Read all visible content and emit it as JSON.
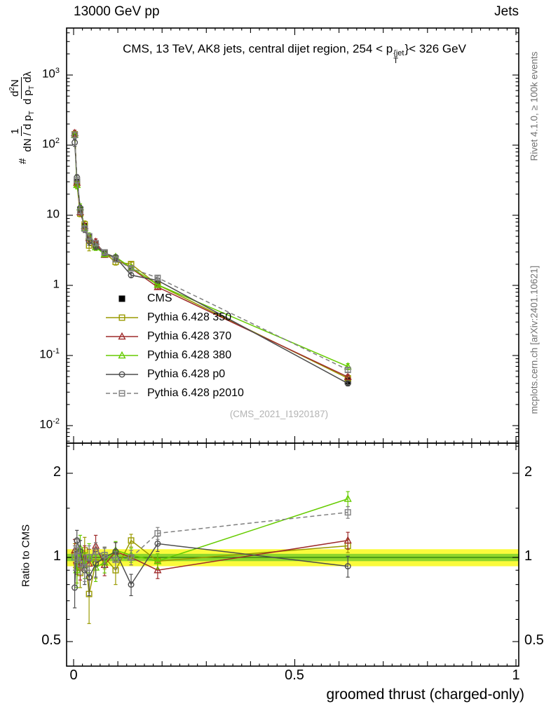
{
  "header": {
    "left": "13000 GeV pp",
    "right": "Jets"
  },
  "plot": {
    "title": {
      "part1": "CMS, 13 TeV, AK8 jets, central dijet region, 254 < p",
      "sup": "{jet",
      "sub": "T",
      "part2": "}< 326 GeV"
    },
    "ylabel": {
      "hash": "#",
      "f1num": "1",
      "f1den": "dN / d p",
      "f1den_sub": "T",
      "f2num_a": "d",
      "f2num_sup": "2",
      "f2num_b": "N",
      "f2den_a": "d p",
      "f2den_sub": "T",
      "f2den_b": " dλ"
    },
    "ratio_ylabel": "Ratio to CMS",
    "xlabel": "groomed thrust (charged-only)",
    "watermark": "(CMS_2021_I1920187)",
    "right_top": "Rivet 4.1.0, ≥ 100k events",
    "right_bottom": "mcplots.cern.ch [arXiv:2401.10621]",
    "y_ticks": [
      {
        "base": "10",
        "exp": "3"
      },
      {
        "base": "10",
        "exp": "2"
      },
      {
        "base": "10",
        "exp": ""
      },
      {
        "base": "1",
        "exp": ""
      },
      {
        "base": "10",
        "exp": "-1"
      },
      {
        "base": "10",
        "exp": "-2"
      }
    ],
    "ratio_ticks": [
      "2",
      "1",
      "0.5"
    ],
    "x_ticks": [
      "0",
      "0.5",
      "1"
    ]
  },
  "legend": {
    "items": [
      {
        "label": "CMS"
      },
      {
        "label": "Pythia 6.428 350"
      },
      {
        "label": "Pythia 6.428 370"
      },
      {
        "label": "Pythia 6.428 380"
      },
      {
        "label": "Pythia 6.428 p0"
      },
      {
        "label": "Pythia 6.428 p2010"
      }
    ]
  },
  "chart_data": {
    "type": "line",
    "title": "CMS, 13 TeV, AK8 jets, central dijet region, 254 < pT(jet) < 326 GeV",
    "xlabel": "groomed thrust (charged-only)",
    "ylabel": "# 1/(dN/dpT) d2N/(dpT dlambda)",
    "ratio_label": "Ratio to CMS",
    "x_range": [
      0,
      1
    ],
    "y_scale": "log",
    "y_range": [
      0.0056,
      4700
    ],
    "ratio_y_range": [
      0.41,
      2.55
    ],
    "legend_position": "inside-left",
    "x": [
      0.0025,
      0.0075,
      0.015,
      0.025,
      0.035,
      0.05,
      0.07,
      0.095,
      0.13,
      0.19,
      0.62
    ],
    "reference": {
      "name": "CMS",
      "color": "#000000",
      "marker": "square",
      "filled": true,
      "y": [
        140,
        30,
        12,
        7,
        5,
        3.8,
        2.9,
        2.4,
        1.75,
        1.05,
        0.043
      ],
      "yerr_rel": [
        0.08,
        0.06,
        0.05,
        0.05,
        0.06,
        0.05,
        0.05,
        0.05,
        0.05,
        0.05,
        0.12
      ]
    },
    "series": [
      {
        "name": "Pythia 6.428 350",
        "color": "#9a9a00",
        "marker": "square",
        "dash": null,
        "ratio": [
          1.02,
          0.93,
          0.88,
          1.06,
          0.74,
          0.96,
          1.0,
          0.9,
          1.15,
          0.97,
          1.1
        ],
        "ratio_err": [
          0.1,
          0.12,
          0.1,
          0.12,
          0.16,
          0.12,
          0.09,
          0.1,
          0.06,
          0.06,
          0.06
        ]
      },
      {
        "name": "Pythia 6.428 370",
        "color": "#9e2b2b",
        "marker": "triangle",
        "dash": null,
        "ratio": [
          1.06,
          0.97,
          0.92,
          1.0,
          0.95,
          1.1,
          0.94,
          1.05,
          1.0,
          0.9,
          1.15
        ],
        "ratio_err": [
          0.1,
          0.1,
          0.09,
          0.1,
          0.12,
          0.1,
          0.08,
          0.08,
          0.06,
          0.06,
          0.08
        ]
      },
      {
        "name": "Pythia 6.428 380",
        "color": "#66cc00",
        "marker": "triangle",
        "dash": null,
        "ratio": [
          1.0,
          0.9,
          1.08,
          0.94,
          1.0,
          0.92,
          0.96,
          1.06,
          1.02,
          0.97,
          1.62
        ],
        "ratio_err": [
          0.1,
          0.12,
          0.12,
          0.1,
          0.12,
          0.1,
          0.08,
          0.08,
          0.06,
          0.06,
          0.1
        ]
      },
      {
        "name": "Pythia 6.428 p0",
        "color": "#4d4d4d",
        "marker": "circle",
        "dash": null,
        "ratio": [
          0.78,
          1.15,
          1.05,
          0.9,
          0.85,
          0.95,
          1.0,
          1.05,
          0.8,
          1.12,
          0.93
        ],
        "ratio_err": [
          0.12,
          0.1,
          0.1,
          0.1,
          0.12,
          0.1,
          0.08,
          0.08,
          0.07,
          0.07,
          0.08
        ]
      },
      {
        "name": "Pythia 6.428 p2010",
        "color": "#808080",
        "marker": "square",
        "dash": "6,4",
        "ratio": [
          1.0,
          1.06,
          0.95,
          0.92,
          1.0,
          1.05,
          1.02,
          0.98,
          1.0,
          1.22,
          1.45
        ],
        "ratio_err": [
          0.1,
          0.1,
          0.08,
          0.1,
          0.1,
          0.08,
          0.07,
          0.07,
          0.06,
          0.06,
          0.07
        ]
      }
    ],
    "band": {
      "outer": [
        0.93,
        1.07
      ],
      "outer_color": "#fafa3c",
      "inner": [
        0.97,
        1.03
      ],
      "inner_color": "#8ed62c",
      "center_color": "#2f7d0a"
    }
  }
}
